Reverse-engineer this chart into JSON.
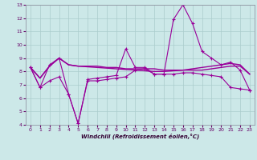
{
  "xlabel": "Windchill (Refroidissement éolien,°C)",
  "bg_color": "#cce8e8",
  "grid_color": "#aacccc",
  "line_color": "#990099",
  "xlim": [
    -0.5,
    23.5
  ],
  "ylim": [
    4,
    13
  ],
  "yticks": [
    4,
    5,
    6,
    7,
    8,
    9,
    10,
    11,
    12,
    13
  ],
  "xticks": [
    0,
    1,
    2,
    3,
    4,
    5,
    6,
    7,
    8,
    9,
    10,
    11,
    12,
    13,
    14,
    15,
    16,
    17,
    18,
    19,
    20,
    21,
    22,
    23
  ],
  "lines": [
    [
      8.3,
      6.8,
      8.5,
      9.0,
      6.3,
      4.1,
      7.4,
      7.5,
      7.6,
      7.7,
      9.7,
      8.3,
      8.3,
      7.8,
      7.8,
      11.9,
      13.0,
      11.6,
      9.5,
      9.0,
      8.5,
      8.7,
      8.1,
      6.6
    ],
    [
      8.3,
      7.5,
      8.4,
      9.0,
      8.5,
      8.4,
      8.4,
      8.4,
      8.3,
      8.3,
      8.2,
      8.2,
      8.2,
      8.2,
      8.1,
      8.1,
      8.1,
      8.1,
      8.1,
      8.2,
      8.3,
      8.4,
      8.4,
      7.8
    ],
    [
      8.3,
      7.5,
      8.4,
      9.0,
      8.5,
      8.4,
      8.35,
      8.3,
      8.25,
      8.2,
      8.15,
      8.1,
      8.05,
      8.0,
      8.0,
      8.05,
      8.1,
      8.2,
      8.3,
      8.4,
      8.5,
      8.6,
      8.5,
      7.8
    ],
    [
      8.3,
      6.8,
      7.3,
      7.6,
      6.3,
      4.1,
      7.3,
      7.3,
      7.4,
      7.5,
      7.6,
      8.1,
      8.2,
      7.8,
      7.8,
      7.8,
      7.9,
      7.9,
      7.8,
      7.7,
      7.6,
      6.8,
      6.7,
      6.6
    ]
  ],
  "line_styles": [
    {
      "marker": "+",
      "markersize": 3,
      "lw": 0.8
    },
    {
      "marker": null,
      "markersize": 0,
      "lw": 1.0
    },
    {
      "marker": null,
      "markersize": 0,
      "lw": 1.0
    },
    {
      "marker": "+",
      "markersize": 3,
      "lw": 0.8
    }
  ]
}
